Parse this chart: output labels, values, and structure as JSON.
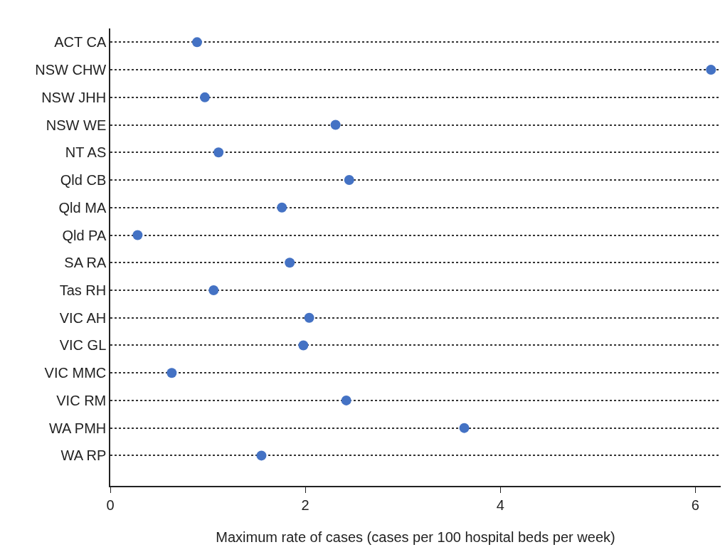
{
  "chart_data": {
    "type": "scatter",
    "xlabel": "Maximum rate of cases (cases per 100 hospital beds per week)",
    "categories": [
      "ACT CA",
      "NSW CHW",
      "NSW JHH",
      "NSW WE",
      "NT AS",
      "Qld CB",
      "Qld MA",
      "Qld PA",
      "SA RA",
      "Tas RH",
      "VIC AH",
      "VIC GL",
      "VIC MMC",
      "VIC RM",
      "WA PMH",
      "WA RP"
    ],
    "orientation": "horizontal",
    "values": [
      0.89,
      6.16,
      0.97,
      2.31,
      1.11,
      2.45,
      1.76,
      0.28,
      1.84,
      1.06,
      2.04,
      1.98,
      0.63,
      2.42,
      3.63,
      1.55
    ],
    "color": "#4472c4",
    "xlim": [
      0,
      6.26
    ],
    "xticks": [
      0,
      2,
      4,
      6
    ],
    "grid": "y",
    "marker": "circle"
  }
}
